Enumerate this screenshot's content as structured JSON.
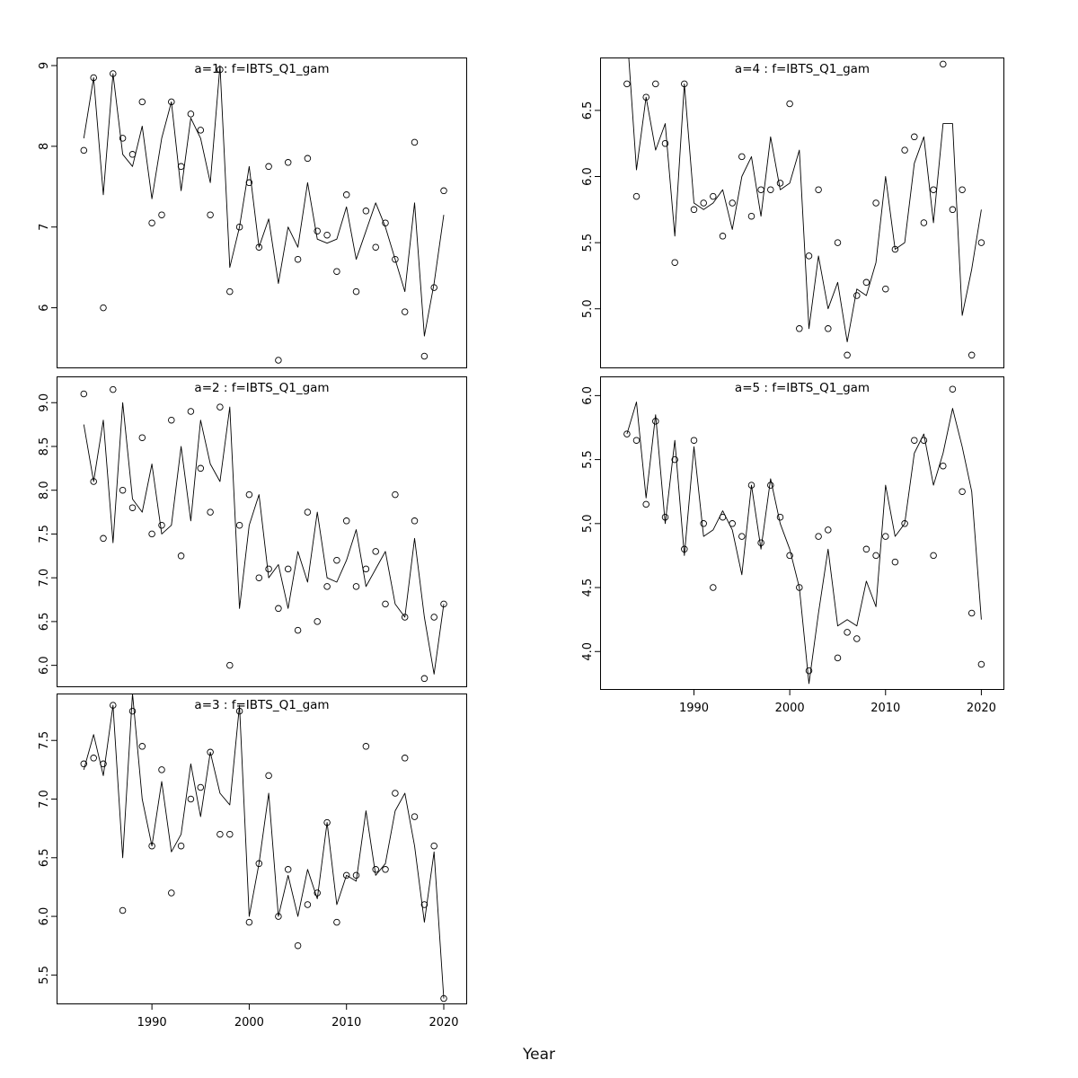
{
  "figure": {
    "xlabel": "Year",
    "background": "#ffffff",
    "axis_color": "#000000",
    "point_color": "#000000",
    "line_color": "#000000",
    "title_color": "#8a8a8a"
  },
  "chart_data": [
    {
      "type": "line",
      "title": "a=1  :  f=IBTS_Q1_gam",
      "x": [
        1983,
        1984,
        1985,
        1986,
        1987,
        1988,
        1989,
        1990,
        1991,
        1992,
        1993,
        1994,
        1995,
        1996,
        1997,
        1998,
        1999,
        2000,
        2001,
        2002,
        2003,
        2004,
        2005,
        2006,
        2007,
        2008,
        2009,
        2010,
        2011,
        2012,
        2013,
        2014,
        2015,
        2016,
        2017,
        2018,
        2019,
        2020
      ],
      "series": [
        {
          "name": "observed",
          "style": "points",
          "values": [
            7.95,
            8.85,
            6.0,
            8.9,
            8.1,
            7.9,
            8.55,
            7.05,
            7.15,
            8.55,
            7.75,
            8.4,
            8.2,
            7.15,
            8.95,
            6.2,
            7.0,
            7.55,
            6.75,
            7.75,
            5.35,
            7.8,
            6.6,
            7.85,
            6.95,
            6.9,
            6.45,
            7.4,
            6.2,
            7.2,
            6.75,
            7.05,
            6.6,
            5.95,
            8.05,
            5.4,
            6.25,
            7.45
          ]
        },
        {
          "name": "fitted",
          "style": "line",
          "values": [
            8.1,
            8.85,
            7.4,
            8.9,
            7.9,
            7.75,
            8.25,
            7.35,
            8.1,
            8.55,
            7.45,
            8.35,
            8.1,
            7.55,
            9.0,
            6.5,
            7.0,
            7.75,
            6.75,
            7.1,
            6.3,
            7.0,
            6.75,
            7.55,
            6.85,
            6.8,
            6.85,
            7.25,
            6.6,
            6.95,
            7.3,
            7.0,
            6.6,
            6.2,
            7.3,
            5.65,
            6.3,
            7.15
          ]
        }
      ],
      "xlim": [
        1980.2,
        2022.4
      ],
      "xticks": [
        1990,
        2000,
        2010,
        2020
      ],
      "xtick_labels": [
        "1990",
        "2000",
        "2010",
        "2020"
      ],
      "show_x_labels": false,
      "ylim": [
        5.25,
        9.1
      ],
      "yticks": [
        6,
        7,
        8,
        9
      ],
      "ytick_labels": [
        "6",
        "7",
        "8",
        "9"
      ],
      "grid": false,
      "legend": false
    },
    {
      "type": "line",
      "title": "a=2  :  f=IBTS_Q1_gam",
      "x": [
        1983,
        1984,
        1985,
        1986,
        1987,
        1988,
        1989,
        1990,
        1991,
        1992,
        1993,
        1994,
        1995,
        1996,
        1997,
        1998,
        1999,
        2000,
        2001,
        2002,
        2003,
        2004,
        2005,
        2006,
        2007,
        2008,
        2009,
        2010,
        2011,
        2012,
        2013,
        2014,
        2015,
        2016,
        2017,
        2018,
        2019,
        2020
      ],
      "series": [
        {
          "name": "observed",
          "style": "points",
          "values": [
            9.1,
            8.1,
            7.45,
            9.15,
            8.0,
            7.8,
            8.6,
            7.5,
            7.6,
            8.8,
            7.25,
            8.9,
            8.25,
            7.75,
            8.95,
            6.0,
            7.6,
            7.95,
            7.0,
            7.1,
            6.65,
            7.1,
            6.4,
            7.75,
            6.5,
            6.9,
            7.2,
            7.65,
            6.9,
            7.1,
            7.3,
            6.7,
            7.95,
            6.55,
            7.65,
            5.85,
            6.55,
            6.7
          ]
        },
        {
          "name": "fitted",
          "style": "line",
          "values": [
            8.75,
            8.1,
            8.8,
            7.4,
            9.0,
            7.9,
            7.75,
            8.3,
            7.5,
            7.6,
            8.5,
            7.65,
            8.8,
            8.3,
            8.1,
            8.95,
            6.65,
            7.6,
            7.95,
            7.0,
            7.15,
            6.65,
            7.3,
            6.95,
            7.75,
            7.0,
            6.95,
            7.2,
            7.55,
            6.9,
            7.1,
            7.3,
            6.7,
            6.55,
            7.45,
            6.55,
            5.9,
            6.7
          ]
        }
      ],
      "xlim": [
        1980.2,
        2022.4
      ],
      "xticks": [
        1990,
        2000,
        2010,
        2020
      ],
      "xtick_labels": [
        "1990",
        "2000",
        "2010",
        "2020"
      ],
      "show_x_labels": false,
      "ylim": [
        5.75,
        9.3
      ],
      "yticks": [
        6.0,
        6.5,
        7.0,
        7.5,
        8.0,
        8.5,
        9.0
      ],
      "ytick_labels": [
        "6.0",
        "6.5",
        "7.0",
        "7.5",
        "8.0",
        "8.5",
        "9.0"
      ],
      "grid": false,
      "legend": false
    },
    {
      "type": "line",
      "title": "a=3  :  f=IBTS_Q1_gam",
      "x": [
        1983,
        1984,
        1985,
        1986,
        1987,
        1988,
        1989,
        1990,
        1991,
        1992,
        1993,
        1994,
        1995,
        1996,
        1997,
        1998,
        1999,
        2000,
        2001,
        2002,
        2003,
        2004,
        2005,
        2006,
        2007,
        2008,
        2009,
        2010,
        2011,
        2012,
        2013,
        2014,
        2015,
        2016,
        2017,
        2018,
        2019,
        2020
      ],
      "series": [
        {
          "name": "observed",
          "style": "points",
          "values": [
            7.3,
            7.35,
            7.3,
            7.8,
            6.05,
            7.75,
            7.45,
            6.6,
            7.25,
            6.2,
            6.6,
            7.0,
            7.1,
            7.4,
            6.7,
            6.7,
            7.75,
            5.95,
            6.45,
            7.2,
            6.0,
            6.4,
            5.75,
            6.1,
            6.2,
            6.8,
            5.95,
            6.35,
            6.35,
            7.45,
            6.4,
            6.4,
            7.05,
            7.35,
            6.85,
            6.1,
            6.6,
            5.3
          ]
        },
        {
          "name": "fitted",
          "style": "line",
          "values": [
            7.25,
            7.55,
            7.2,
            7.8,
            6.5,
            7.9,
            7.0,
            6.6,
            7.15,
            6.55,
            6.7,
            7.3,
            6.85,
            7.4,
            7.05,
            6.95,
            7.8,
            6.0,
            6.45,
            7.05,
            6.0,
            6.35,
            6.0,
            6.4,
            6.15,
            6.8,
            6.1,
            6.35,
            6.3,
            6.9,
            6.35,
            6.45,
            6.9,
            7.05,
            6.6,
            5.95,
            6.55,
            5.3
          ]
        }
      ],
      "xlim": [
        1980.2,
        2022.4
      ],
      "xticks": [
        1990,
        2000,
        2010,
        2020
      ],
      "xtick_labels": [
        "1990",
        "2000",
        "2010",
        "2020"
      ],
      "show_x_labels": true,
      "ylim": [
        5.25,
        7.9
      ],
      "yticks": [
        5.5,
        6.0,
        6.5,
        7.0,
        7.5
      ],
      "ytick_labels": [
        "5.5",
        "6.0",
        "6.5",
        "7.0",
        "7.5"
      ],
      "grid": false,
      "legend": false
    },
    {
      "type": "line",
      "title": "a=4  :  f=IBTS_Q1_gam",
      "x": [
        1983,
        1984,
        1985,
        1986,
        1987,
        1988,
        1989,
        1990,
        1991,
        1992,
        1993,
        1994,
        1995,
        1996,
        1997,
        1998,
        1999,
        2000,
        2001,
        2002,
        2003,
        2004,
        2005,
        2006,
        2007,
        2008,
        2009,
        2010,
        2011,
        2012,
        2013,
        2014,
        2015,
        2016,
        2017,
        2018,
        2019,
        2020
      ],
      "series": [
        {
          "name": "observed",
          "style": "points",
          "values": [
            6.7,
            5.85,
            6.6,
            6.7,
            6.25,
            5.35,
            6.7,
            5.75,
            5.8,
            5.85,
            5.55,
            5.8,
            6.15,
            5.7,
            5.9,
            5.9,
            5.95,
            6.55,
            4.85,
            5.4,
            5.9,
            4.85,
            5.5,
            4.65,
            5.1,
            5.2,
            5.8,
            5.15,
            5.45,
            6.2,
            6.3,
            5.65,
            5.9,
            6.85,
            5.75,
            5.9,
            4.65,
            5.5
          ]
        },
        {
          "name": "fitted",
          "style": "line",
          "values": [
            7.1,
            6.05,
            6.6,
            6.2,
            6.4,
            5.55,
            6.7,
            5.8,
            5.75,
            5.8,
            5.9,
            5.6,
            6.0,
            6.15,
            5.7,
            6.3,
            5.9,
            5.95,
            6.2,
            4.85,
            5.4,
            5.0,
            5.2,
            4.75,
            5.15,
            5.1,
            5.35,
            6.0,
            5.45,
            5.5,
            6.1,
            6.3,
            5.65,
            6.4,
            6.4,
            4.95,
            5.3,
            5.75
          ]
        }
      ],
      "xlim": [
        1980.2,
        2022.4
      ],
      "xticks": [
        1990,
        2000,
        2010,
        2020
      ],
      "xtick_labels": [
        "1990",
        "2000",
        "2010",
        "2020"
      ],
      "show_x_labels": false,
      "ylim": [
        4.55,
        6.9
      ],
      "yticks": [
        5.0,
        5.5,
        6.0,
        6.5
      ],
      "ytick_labels": [
        "5.0",
        "5.5",
        "6.0",
        "6.5"
      ],
      "grid": false,
      "legend": false
    },
    {
      "type": "line",
      "title": "a=5  :  f=IBTS_Q1_gam",
      "x": [
        1983,
        1984,
        1985,
        1986,
        1987,
        1988,
        1989,
        1990,
        1991,
        1992,
        1993,
        1994,
        1995,
        1996,
        1997,
        1998,
        1999,
        2000,
        2001,
        2002,
        2003,
        2004,
        2005,
        2006,
        2007,
        2008,
        2009,
        2010,
        2011,
        2012,
        2013,
        2014,
        2015,
        2016,
        2017,
        2018,
        2019,
        2020
      ],
      "series": [
        {
          "name": "observed",
          "style": "points",
          "values": [
            5.7,
            5.65,
            5.15,
            5.8,
            5.05,
            5.5,
            4.8,
            5.65,
            5.0,
            4.5,
            5.05,
            5.0,
            4.9,
            5.3,
            4.85,
            5.3,
            5.05,
            4.75,
            4.5,
            3.85,
            4.9,
            4.95,
            3.95,
            4.15,
            4.1,
            4.8,
            4.75,
            4.9,
            4.7,
            5.0,
            5.65,
            5.65,
            4.75,
            5.45,
            6.05,
            5.25,
            4.3,
            3.9
          ]
        },
        {
          "name": "fitted",
          "style": "line",
          "values": [
            5.7,
            5.95,
            5.2,
            5.85,
            5.0,
            5.65,
            4.75,
            5.6,
            4.9,
            4.95,
            5.1,
            4.95,
            4.6,
            5.3,
            4.8,
            5.35,
            5.0,
            4.8,
            4.5,
            3.75,
            4.3,
            4.8,
            4.2,
            4.25,
            4.2,
            4.55,
            4.35,
            5.3,
            4.9,
            5.0,
            5.55,
            5.7,
            5.3,
            5.55,
            5.9,
            5.6,
            5.25,
            4.25
          ]
        }
      ],
      "xlim": [
        1980.2,
        2022.4
      ],
      "xticks": [
        1990,
        2000,
        2010,
        2020
      ],
      "xtick_labels": [
        "1990",
        "2000",
        "2010",
        "2020"
      ],
      "show_x_labels": true,
      "ylim": [
        3.7,
        6.15
      ],
      "yticks": [
        4.0,
        4.5,
        5.0,
        5.5,
        6.0
      ],
      "ytick_labels": [
        "4.0",
        "4.5",
        "5.0",
        "5.5",
        "6.0"
      ],
      "grid": false,
      "legend": false
    }
  ]
}
